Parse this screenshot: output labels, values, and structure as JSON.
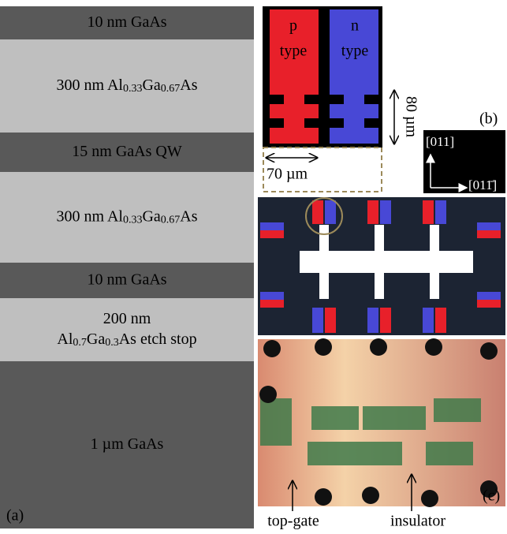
{
  "layers": [
    {
      "lines": [
        [
          {
            "text": "10 nm GaAs"
          }
        ]
      ]
    },
    {
      "lines": [
        [
          {
            "text": "300 nm Al"
          },
          {
            "sub": "0.33"
          },
          {
            "text": "Ga"
          },
          {
            "sub": "0.67"
          },
          {
            "text": "As"
          }
        ]
      ]
    },
    {
      "lines": [
        [
          {
            "text": "15 nm GaAs QW"
          }
        ]
      ]
    },
    {
      "lines": [
        [
          {
            "text": "300 nm  Al"
          },
          {
            "sub": "0.33"
          },
          {
            "text": "Ga"
          },
          {
            "sub": "0.67"
          },
          {
            "text": "As"
          }
        ]
      ]
    },
    {
      "lines": [
        [
          {
            "text": "10 nm GaAs"
          }
        ]
      ]
    },
    {
      "lines": [
        [
          {
            "text": "200 nm"
          }
        ],
        [
          {
            "text": "Al"
          },
          {
            "sub": "0.7"
          },
          {
            "text": "Ga"
          },
          {
            "sub": "0.3"
          },
          {
            "text": "As etch stop"
          }
        ]
      ]
    },
    {
      "lines": [
        [
          {
            "text": "1 µm GaAs"
          }
        ]
      ]
    }
  ],
  "panel_a": "(a)",
  "panel_b": {
    "label": "(b)",
    "p_type": [
      "p",
      "type"
    ],
    "n_type": [
      "n",
      "type"
    ],
    "width": "70 µm",
    "height": "80 µm",
    "dir_up": "[011]",
    "dir_right": "[011̄]"
  },
  "panel_c": {
    "label": "(c)",
    "top_gate": "top-gate",
    "insulator": "insulator"
  }
}
